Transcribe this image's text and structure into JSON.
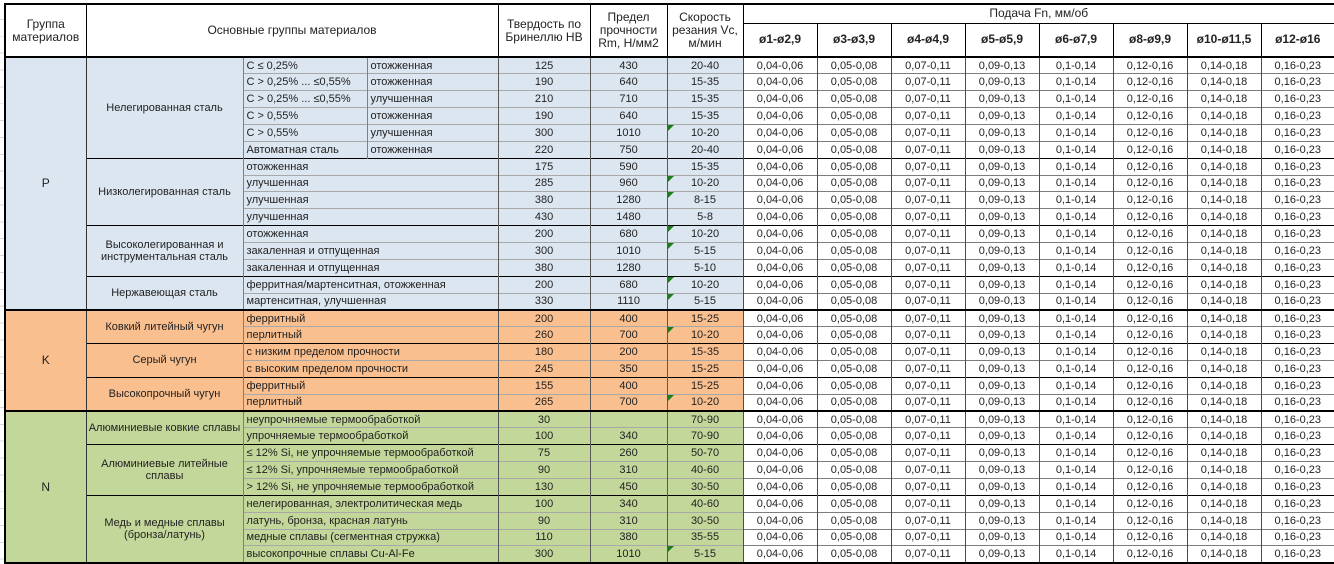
{
  "header": {
    "col_group": "Группа материалов",
    "col_materials": "Основные группы материалов",
    "col_hardness": "Твердость по Бринеллю НВ",
    "col_strength": "Предел прочности Rm, Н/мм2",
    "col_speed": "Скорость резания Vc, м/мин",
    "col_feed": "Подача Fn, мм/об",
    "feed_columns": [
      "ø1-ø2,9",
      "ø3-ø3,9",
      "ø4-ø4,9",
      "ø5-ø5,9",
      "ø6-ø7,9",
      "ø8-ø9,9",
      "ø10-ø11,5",
      "ø12-ø16"
    ]
  },
  "feed_values": [
    "0,04-0,06",
    "0,05-0,08",
    "0,07-0,11",
    "0,09-0,13",
    "0,1-0,14",
    "0,12-0,16",
    "0,14-0,18",
    "0,16-0,23"
  ],
  "colors": {
    "group_p": "#DCE6F1",
    "group_k": "#FABF8F",
    "group_n": "#C4D79B",
    "flag_triangle": "#1E7B1E"
  },
  "groups": [
    {
      "letter": "P",
      "color": "#DCE6F1",
      "subgroups": [
        {
          "name": "Нелегированная сталь",
          "rows": [
            {
              "condition": "C ≤ 0,25%",
              "state": "отожженная",
              "hb": "125",
              "rm": "430",
              "vc": "20-40",
              "flag": false
            },
            {
              "condition": "C > 0,25% ... ≤0,55%",
              "state": "отожженная",
              "hb": "190",
              "rm": "640",
              "vc": "15-35",
              "flag": false
            },
            {
              "condition": "C > 0,25% ... ≤0,55%",
              "state": "улучшенная",
              "hb": "210",
              "rm": "710",
              "vc": "15-35",
              "flag": false
            },
            {
              "condition": "C > 0,55%",
              "state": "отожженная",
              "hb": "190",
              "rm": "640",
              "vc": "15-35",
              "flag": false
            },
            {
              "condition": "C > 0,55%",
              "state": "улучшенная",
              "hb": "300",
              "rm": "1010",
              "vc": "10-20",
              "flag": true
            },
            {
              "condition": "Автоматная сталь",
              "state": "отожженная",
              "hb": "220",
              "rm": "750",
              "vc": "20-40",
              "flag": false
            }
          ]
        },
        {
          "name": "Низколегированная сталь",
          "rows": [
            {
              "desc": "отожженная",
              "hb": "175",
              "rm": "590",
              "vc": "15-35",
              "flag": false
            },
            {
              "desc": "улучшенная",
              "hb": "285",
              "rm": "960",
              "vc": "10-20",
              "flag": true
            },
            {
              "desc": "улучшенная",
              "hb": "380",
              "rm": "1280",
              "vc": "8-15",
              "flag": true
            },
            {
              "desc": "улучшенная",
              "hb": "430",
              "rm": "1480",
              "vc": "5-8",
              "flag": false
            }
          ]
        },
        {
          "name": "Высоколегированная и инструментальная сталь",
          "rows": [
            {
              "desc": "отожженная",
              "hb": "200",
              "rm": "680",
              "vc": "10-20",
              "flag": true
            },
            {
              "desc": "закаленная и отпущенная",
              "hb": "300",
              "rm": "1010",
              "vc": "5-15",
              "flag": true
            },
            {
              "desc": "закаленная и отпущенная",
              "hb": "380",
              "rm": "1280",
              "vc": "5-10",
              "flag": false
            }
          ]
        },
        {
          "name": "Нержавеющая сталь",
          "rows": [
            {
              "desc": "ферритная/мартенситная, отожженная",
              "hb": "200",
              "rm": "680",
              "vc": "10-20",
              "flag": true
            },
            {
              "desc": "мартенситная, улучшенная",
              "hb": "330",
              "rm": "1110",
              "vc": "5-15",
              "flag": true
            }
          ]
        }
      ]
    },
    {
      "letter": "K",
      "color": "#FABF8F",
      "subgroups": [
        {
          "name": "Ковкий литейный чугун",
          "rows": [
            {
              "desc": "ферритный",
              "hb": "200",
              "rm": "400",
              "vc": "15-25",
              "flag": false
            },
            {
              "desc": "перлитный",
              "hb": "260",
              "rm": "700",
              "vc": "10-20",
              "flag": true
            }
          ]
        },
        {
          "name": "Серый чугун",
          "rows": [
            {
              "desc": "с низким пределом прочности",
              "hb": "180",
              "rm": "200",
              "vc": "15-35",
              "flag": false
            },
            {
              "desc": "с высоким пределом прочности",
              "hb": "245",
              "rm": "350",
              "vc": "15-25",
              "flag": false
            }
          ]
        },
        {
          "name": "Высокопрочный чугун",
          "rows": [
            {
              "desc": "ферритный",
              "hb": "155",
              "rm": "400",
              "vc": "15-25",
              "flag": false
            },
            {
              "desc": "перлитный",
              "hb": "265",
              "rm": "700",
              "vc": "10-20",
              "flag": true
            }
          ]
        }
      ]
    },
    {
      "letter": "N",
      "color": "#C4D79B",
      "subgroups": [
        {
          "name": "Алюминиевые ковкие сплавы",
          "rows": [
            {
              "desc": "неупрочняемые термообработкой",
              "hb": "30",
              "rm": "",
              "vc": "70-90",
              "flag": false
            },
            {
              "desc": "упрочняемые термообработкой",
              "hb": "100",
              "rm": "340",
              "vc": "70-90",
              "flag": false
            }
          ]
        },
        {
          "name": "Алюминиевые литейные сплавы",
          "rows": [
            {
              "desc": "≤ 12% Si, не упрочняемые термообработкой",
              "hb": "75",
              "rm": "260",
              "vc": "50-70",
              "flag": false
            },
            {
              "desc": "≤ 12% Si, упрочняемые термообработкой",
              "hb": "90",
              "rm": "310",
              "vc": "40-60",
              "flag": false
            },
            {
              "desc": "> 12% Si, не упрочняемые термообработкой",
              "hb": "130",
              "rm": "450",
              "vc": "30-50",
              "flag": false
            }
          ]
        },
        {
          "name": "Медь и медные сплавы (бронза/латунь)",
          "rows": [
            {
              "desc": "нелегированная, электролитическая медь",
              "hb": "100",
              "rm": "340",
              "vc": "40-60",
              "flag": false
            },
            {
              "desc": "латунь, бронза, красная латунь",
              "hb": "90",
              "rm": "310",
              "vc": "30-50",
              "flag": false
            },
            {
              "desc": "медные сплавы (сегментная стружка)",
              "hb": "110",
              "rm": "380",
              "vc": "35-55",
              "flag": false
            },
            {
              "desc": "высокопрочные сплавы Cu-Al-Fe",
              "hb": "300",
              "rm": "1010",
              "vc": "5-15",
              "flag": true
            }
          ]
        }
      ]
    }
  ]
}
